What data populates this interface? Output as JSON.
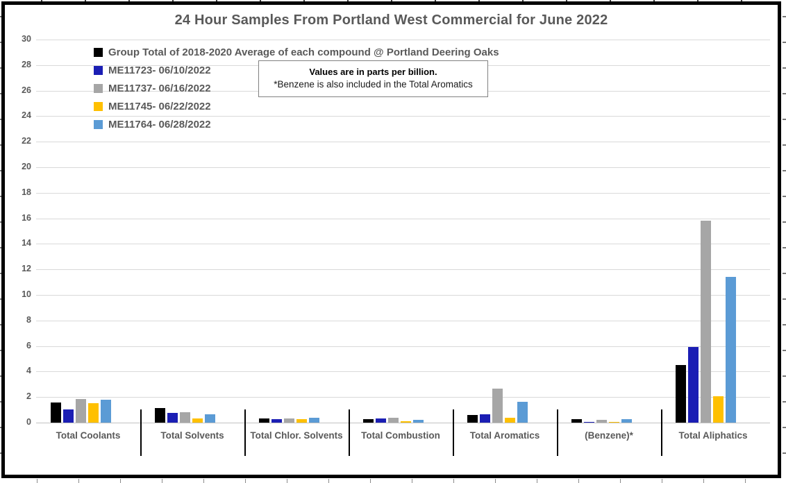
{
  "chart_data": {
    "type": "bar",
    "title": "24 Hour Samples From Portland West Commercial for June 2022",
    "categories": [
      "Total Coolants",
      "Total Solvents",
      "Total Chlor. Solvents",
      "Total Combustion",
      "Total Aromatics",
      "(Benzene)*",
      "Total Aliphatics"
    ],
    "series": [
      {
        "name": "Group Total of 2018-2020 Average of each compound @ Portland Deering Oaks",
        "color": "#000000",
        "values": [
          1.55,
          1.15,
          0.35,
          0.28,
          0.6,
          0.25,
          4.5
        ]
      },
      {
        "name": "ME11723- 06/10/2022",
        "color": "#1B1EB4",
        "values": [
          1.05,
          0.75,
          0.28,
          0.35,
          0.65,
          0.08,
          5.9
        ]
      },
      {
        "name": "ME11737- 06/16/2022",
        "color": "#A6A6A6",
        "values": [
          1.85,
          0.8,
          0.35,
          0.4,
          2.65,
          0.2,
          15.8
        ]
      },
      {
        "name": "ME11745- 06/22/2022",
        "color": "#FFC000",
        "values": [
          1.5,
          0.3,
          0.28,
          0.12,
          0.37,
          0.02,
          2.05
        ]
      },
      {
        "name": "ME11764- 06/28/2022",
        "color": "#5B9BD5",
        "values": [
          1.8,
          0.65,
          0.4,
          0.2,
          1.65,
          0.27,
          11.4
        ]
      }
    ],
    "ylim": [
      0,
      30
    ],
    "ytick_step": 2,
    "grid": true,
    "legend_position": "top-left-inside",
    "annotation": {
      "line1": "Values are in parts per billion.",
      "line2": "*Benzene is also included in the Total Aromatics"
    },
    "axis_text_color": "#595959",
    "gridline_color": "#D9D9D9",
    "zero_line_color": "#C2C2C2"
  }
}
